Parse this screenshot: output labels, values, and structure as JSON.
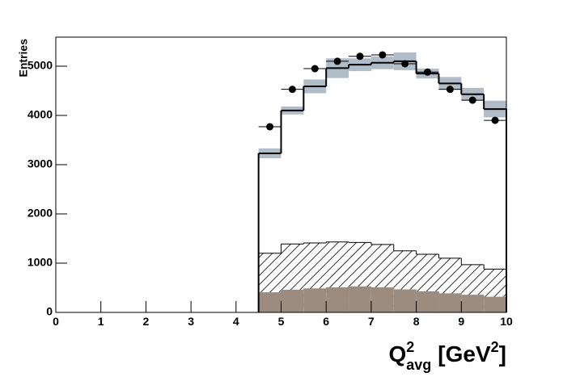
{
  "chart_data": {
    "type": "histogram",
    "ylabel": "Entries",
    "xlabel": {
      "base": "Q",
      "sup": "2",
      "sub": "avg",
      "unit": "[GeV",
      "unit_sup": "2",
      "close": "]"
    },
    "xlim": [
      0,
      10
    ],
    "ylim": [
      0,
      5590
    ],
    "xticks": [
      0,
      1,
      2,
      3,
      4,
      5,
      6,
      7,
      8,
      9,
      10
    ],
    "yticks": [
      0,
      1000,
      2000,
      3000,
      4000,
      5000
    ],
    "bins": [
      4.5,
      5,
      5.5,
      6,
      6.5,
      7,
      7.5,
      8,
      8.5,
      9,
      9.5,
      10
    ],
    "histograms": [
      {
        "style": "band-line",
        "color": "#000000",
        "band_color": "#b0bcc8",
        "values": [
          3230,
          4100,
          4590,
          4960,
          5030,
          5070,
          5100,
          4850,
          4650,
          4430,
          4130
        ],
        "errors": [
          100,
          80,
          140,
          200,
          130,
          130,
          180,
          100,
          130,
          130,
          170
        ]
      },
      {
        "style": "hatch",
        "color": "#000000",
        "values": [
          1200,
          1390,
          1410,
          1430,
          1420,
          1380,
          1250,
          1180,
          1100,
          970,
          880
        ]
      },
      {
        "style": "fill",
        "color": "#9c8c80",
        "values": [
          400,
          450,
          480,
          500,
          520,
          500,
          460,
          420,
          380,
          350,
          310
        ]
      }
    ],
    "points": {
      "color": "#000000",
      "x": [
        4.75,
        5.25,
        5.75,
        6.25,
        6.75,
        7.25,
        7.75,
        8.25,
        8.75,
        9.25,
        9.75
      ],
      "xerr": [
        0.25,
        0.25,
        0.25,
        0.25,
        0.25,
        0.25,
        0.25,
        0.25,
        0.25,
        0.25,
        0.25
      ],
      "values": [
        3770,
        4530,
        4950,
        5100,
        5200,
        5230,
        5050,
        4880,
        4530,
        4310,
        3900
      ]
    }
  }
}
